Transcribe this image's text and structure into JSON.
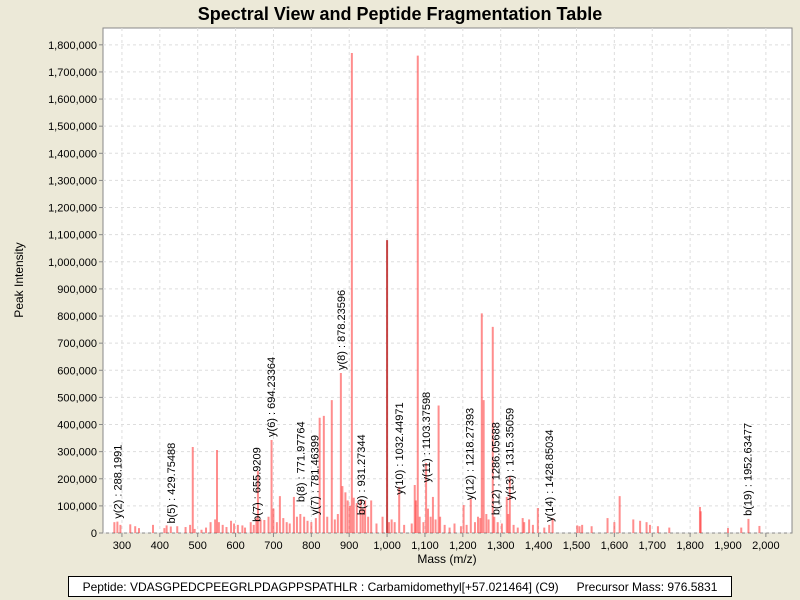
{
  "chart_data": {
    "type": "bar",
    "title": "Spectral View and Peptide Fragmentation Table",
    "xlabel": "Mass (m/z)",
    "ylabel": "Peak Intensity",
    "xlim": [
      250,
      2069
    ],
    "ylim": [
      0,
      1862000
    ],
    "grid": true,
    "x_ticks": [
      300,
      400,
      500,
      600,
      700,
      800,
      900,
      1000,
      1100,
      1200,
      1300,
      1400,
      1500,
      1600,
      1700,
      1800,
      1900,
      2000
    ],
    "x_tick_labels": [
      "300",
      "400",
      "500",
      "600",
      "700",
      "800",
      "900",
      "1,000",
      "1,100",
      "1,200",
      "1,300",
      "1,400",
      "1,500",
      "1,600",
      "1,700",
      "1,800",
      "1,900",
      "2,000"
    ],
    "y_ticks": [
      0,
      100000,
      200000,
      300000,
      400000,
      500000,
      600000,
      700000,
      800000,
      900000,
      1000000,
      1100000,
      1200000,
      1300000,
      1400000,
      1500000,
      1600000,
      1700000,
      1800000
    ],
    "y_tick_labels": [
      "0",
      "100,000",
      "200,000",
      "300,000",
      "400,000",
      "500,000",
      "600,000",
      "700,000",
      "800,000",
      "900,000",
      "1,000,000",
      "1,100,000",
      "1,200,000",
      "1,300,000",
      "1,400,000",
      "1,500,000",
      "1,600,000",
      "1,700,000",
      "1,800,000"
    ],
    "peak_color": "#FF3030",
    "peaks": [
      [
        280,
        40000
      ],
      [
        288,
        42000
      ],
      [
        296,
        30000
      ],
      [
        322,
        32000
      ],
      [
        335,
        25000
      ],
      [
        345,
        18000
      ],
      [
        382,
        30000
      ],
      [
        412,
        18000
      ],
      [
        418,
        28000
      ],
      [
        429,
        24000
      ],
      [
        446,
        25000
      ],
      [
        468,
        22000
      ],
      [
        480,
        30000
      ],
      [
        487,
        317000
      ],
      [
        492,
        15000
      ],
      [
        510,
        12000
      ],
      [
        522,
        20000
      ],
      [
        534,
        40000
      ],
      [
        546,
        50000
      ],
      [
        551,
        306000
      ],
      [
        556,
        40000
      ],
      [
        566,
        30000
      ],
      [
        576,
        22000
      ],
      [
        588,
        45000
      ],
      [
        596,
        35000
      ],
      [
        606,
        30000
      ],
      [
        618,
        28000
      ],
      [
        625,
        20000
      ],
      [
        640,
        40000
      ],
      [
        648,
        30000
      ],
      [
        655,
        55000
      ],
      [
        659,
        229000
      ],
      [
        666,
        50000
      ],
      [
        676,
        48000
      ],
      [
        687,
        60000
      ],
      [
        695,
        343000
      ],
      [
        700,
        90000
      ],
      [
        709,
        40000
      ],
      [
        717,
        136000
      ],
      [
        726,
        55000
      ],
      [
        735,
        40000
      ],
      [
        743,
        35000
      ],
      [
        754,
        133000
      ],
      [
        762,
        60000
      ],
      [
        771,
        70000
      ],
      [
        781,
        60000
      ],
      [
        790,
        45000
      ],
      [
        800,
        40000
      ],
      [
        812,
        55000
      ],
      [
        822,
        425000
      ],
      [
        833,
        432000
      ],
      [
        842,
        60000
      ],
      [
        854,
        490000
      ],
      [
        862,
        50000
      ],
      [
        870,
        70000
      ],
      [
        878,
        590000
      ],
      [
        882,
        173000
      ],
      [
        890,
        150000
      ],
      [
        896,
        120000
      ],
      [
        902,
        100000
      ],
      [
        907,
        1770000
      ],
      [
        912,
        130000
      ],
      [
        920,
        110000
      ],
      [
        930,
        125000
      ],
      [
        936,
        90000
      ],
      [
        942,
        120000
      ],
      [
        950,
        60000
      ],
      [
        958,
        120000
      ],
      [
        972,
        35000
      ],
      [
        988,
        60000
      ],
      [
        1000,
        1080000
      ],
      [
        1005,
        40000
      ],
      [
        1012,
        50000
      ],
      [
        1020,
        40000
      ],
      [
        1032,
        170000
      ],
      [
        1045,
        30000
      ],
      [
        1065,
        35000
      ],
      [
        1073,
        177000
      ],
      [
        1076,
        120000
      ],
      [
        1081,
        1760000
      ],
      [
        1086,
        60000
      ],
      [
        1096,
        40000
      ],
      [
        1103,
        258000
      ],
      [
        1108,
        90000
      ],
      [
        1115,
        60000
      ],
      [
        1121,
        133000
      ],
      [
        1128,
        50000
      ],
      [
        1136,
        470000
      ],
      [
        1140,
        60000
      ],
      [
        1152,
        30000
      ],
      [
        1165,
        20000
      ],
      [
        1178,
        35000
      ],
      [
        1195,
        25000
      ],
      [
        1202,
        103000
      ],
      [
        1210,
        30000
      ],
      [
        1221,
        125000
      ],
      [
        1232,
        40000
      ],
      [
        1240,
        60000
      ],
      [
        1246,
        55000
      ],
      [
        1250,
        810000
      ],
      [
        1255,
        490000
      ],
      [
        1262,
        70000
      ],
      [
        1268,
        50000
      ],
      [
        1279,
        760000
      ],
      [
        1283,
        60000
      ],
      [
        1292,
        40000
      ],
      [
        1303,
        35000
      ],
      [
        1316,
        133000
      ],
      [
        1320,
        70000
      ],
      [
        1324,
        207000
      ],
      [
        1334,
        30000
      ],
      [
        1345,
        20000
      ],
      [
        1358,
        55000
      ],
      [
        1362,
        40000
      ],
      [
        1375,
        50000
      ],
      [
        1385,
        30000
      ],
      [
        1398,
        92000
      ],
      [
        1415,
        20000
      ],
      [
        1428,
        30000
      ],
      [
        1437,
        55000
      ],
      [
        1502,
        28000
      ],
      [
        1508,
        25000
      ],
      [
        1515,
        30000
      ],
      [
        1540,
        25000
      ],
      [
        1582,
        55000
      ],
      [
        1600,
        40000
      ],
      [
        1614,
        136000
      ],
      [
        1650,
        50000
      ],
      [
        1668,
        45000
      ],
      [
        1685,
        40000
      ],
      [
        1694,
        30000
      ],
      [
        1715,
        25000
      ],
      [
        1745,
        20000
      ],
      [
        1826,
        96000
      ],
      [
        1828,
        80000
      ],
      [
        1900,
        18000
      ],
      [
        1935,
        20000
      ],
      [
        1954,
        52000
      ],
      [
        1983,
        26000
      ]
    ],
    "annotations": [
      {
        "label": "y(2) : 288.1991",
        "mz": 288,
        "intensity": 42000
      },
      {
        "label": "b(5) : 429.75488",
        "mz": 429,
        "intensity": 24000
      },
      {
        "label": "b(7) : 655.9209",
        "mz": 655,
        "intensity": 30000
      },
      {
        "label": "y(6) : 694.23364",
        "mz": 694,
        "intensity": 343000
      },
      {
        "label": "b(8) : 771.97764",
        "mz": 771,
        "intensity": 103000
      },
      {
        "label": "y(7) : 781.46399",
        "mz": 781,
        "intensity": 55000
      },
      {
        "label": "y(8) : 878.23596",
        "mz": 878,
        "intensity": 590000
      },
      {
        "label": "b(9) : 931.27344",
        "mz": 931,
        "intensity": 55000
      },
      {
        "label": "y(10) : 1032.44971",
        "mz": 1032,
        "intensity": 130000
      },
      {
        "label": "y(11) : 1103.37598",
        "mz": 1103,
        "intensity": 175000
      },
      {
        "label": "y(12) : 1218.27393",
        "mz": 1218,
        "intensity": 110000
      },
      {
        "label": "b(12) : 1286.05688",
        "mz": 1286,
        "intensity": 55000
      },
      {
        "label": "y(13) : 1315.35059",
        "mz": 1315,
        "intensity": 110000
      },
      {
        "label": "y(14) : 1428.85034",
        "mz": 1428,
        "intensity": 30000
      },
      {
        "label": "b(19) : 1952.63477",
        "mz": 1952,
        "intensity": 52000
      }
    ]
  },
  "legend": {
    "peptide": "Peptide: VDASGPEDCPEEGRLPDAGPPSPATHLR : Carbamidomethyl[+57.021464] (C9)",
    "precursor": "Precursor Mass: 976.5831"
  }
}
